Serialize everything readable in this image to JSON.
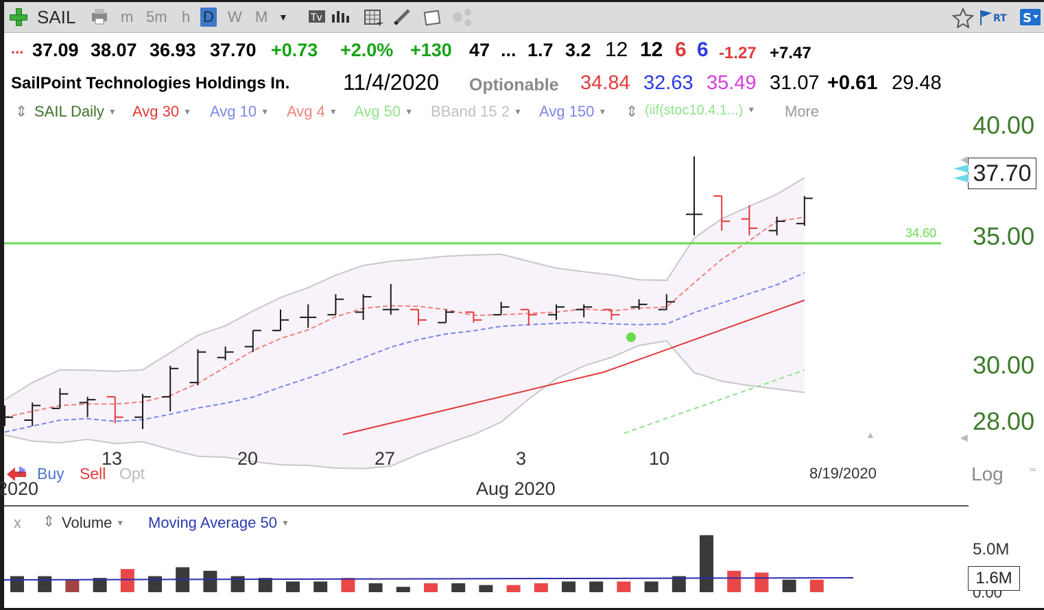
{
  "toolbar": {
    "symbol": "SAIL",
    "timeframes": [
      "m",
      "5m",
      "h",
      "D",
      "W",
      "M"
    ],
    "active_timeframe": "D",
    "rt_label": "RT",
    "s_label": "S"
  },
  "quote_line1": {
    "dots": "...",
    "open": "37.09",
    "high": "38.07",
    "low": "36.93",
    "close": "37.70",
    "change": "+0.73",
    "change_pct": "+2.0%",
    "vol_change": "+130",
    "v1": "47",
    "ellipsis": "...",
    "v2": "1.7",
    "v3": "3.2",
    "v4": "12",
    "v5": "12",
    "v6": "6",
    "v7": "6",
    "v8": "-1.27",
    "v9": "+7.47"
  },
  "quote_line2": {
    "company": "SailPoint Technologies Holdings In.",
    "date": "11/4/2020",
    "optionable": "Optionable",
    "n1": "34.84",
    "n2": "32.63",
    "n3": "35.49",
    "n4": "31.07",
    "n5": "+0.61",
    "n6": "29.48"
  },
  "indicators": [
    "SAIL Daily",
    "Avg 30",
    "Avg 10",
    "Avg 4",
    "Avg 50",
    "BBand 15 2",
    "Avg 150",
    "(iif(stoc10.4.1...)",
    "More"
  ],
  "colors": {
    "avg30": "#e03a3a",
    "avg10": "#7b86e6",
    "avg4": "#f0817d",
    "avg50": "#8fe38a",
    "bband": "#c8c8c8",
    "avg150": "#7b86e6",
    "stoc": "#8fe38a",
    "up_bar": "#1a1a1a",
    "down_bar": "#e03a3a",
    "hline": "#67dd4f",
    "axis_green": "#3c7a2a"
  },
  "price_axis": {
    "labels": [
      "40.00",
      "35.00",
      "30.00",
      "28.00"
    ],
    "current": "37.70",
    "scale": "Log"
  },
  "hline_label": "34.60",
  "date_axis": {
    "labels": [
      "13",
      "20",
      "27",
      "3",
      "10"
    ],
    "month": "Aug 2020",
    "year": "2020",
    "last_date": "8/19/2020"
  },
  "trade": {
    "buy": "Buy",
    "sell": "Sell",
    "opt": "Opt"
  },
  "volume_panel": {
    "close": "x",
    "title": "Volume",
    "ma": "Moving Average 50",
    "axis": [
      "5.0M",
      "1.6M",
      "0.00"
    ]
  },
  "chart_data": {
    "type": "ohlc",
    "title": "SAIL Daily",
    "ylim": [
      26.5,
      41
    ],
    "log_scale": true,
    "horizontal_line": 34.6,
    "bars": [
      {
        "x": "Jul 10",
        "o": 28.3,
        "h": 28.5,
        "l": 27.8,
        "c": 28.1,
        "up": true
      },
      {
        "x": "Jul 13",
        "o": 28.0,
        "h": 28.6,
        "l": 27.8,
        "c": 28.5,
        "up": true
      },
      {
        "x": "Jul 14",
        "o": 28.4,
        "h": 29.1,
        "l": 28.4,
        "c": 28.9,
        "up": true
      },
      {
        "x": "Jul 15",
        "o": 28.6,
        "h": 28.8,
        "l": 28.1,
        "c": 28.7,
        "up": true
      },
      {
        "x": "Jul 16",
        "o": 28.8,
        "h": 28.8,
        "l": 27.9,
        "c": 28.1,
        "up": false
      },
      {
        "x": "Jul 17",
        "o": 28.1,
        "h": 28.9,
        "l": 27.7,
        "c": 28.8,
        "up": true
      },
      {
        "x": "Jul 20",
        "o": 28.8,
        "h": 29.9,
        "l": 28.3,
        "c": 29.8,
        "up": true
      },
      {
        "x": "Jul 21",
        "o": 29.3,
        "h": 30.5,
        "l": 29.2,
        "c": 30.4,
        "up": true
      },
      {
        "x": "Jul 22",
        "o": 30.2,
        "h": 30.6,
        "l": 30.1,
        "c": 30.4,
        "up": true
      },
      {
        "x": "Jul 23",
        "o": 30.6,
        "h": 31.2,
        "l": 30.4,
        "c": 31.2,
        "up": true
      },
      {
        "x": "Jul 24",
        "o": 31.2,
        "h": 32.0,
        "l": 31.2,
        "c": 31.6,
        "up": true
      },
      {
        "x": "Jul 27",
        "o": 31.7,
        "h": 32.2,
        "l": 31.3,
        "c": 31.7,
        "up": true
      },
      {
        "x": "Jul 28",
        "o": 31.8,
        "h": 32.6,
        "l": 31.8,
        "c": 32.4,
        "up": true
      },
      {
        "x": "Jul 29",
        "o": 31.9,
        "h": 32.6,
        "l": 31.6,
        "c": 32.5,
        "up": true
      },
      {
        "x": "Jul 30",
        "o": 32.0,
        "h": 33.0,
        "l": 31.8,
        "c": 32.0,
        "up": true
      },
      {
        "x": "Jul 31",
        "o": 32.0,
        "h": 32.0,
        "l": 31.4,
        "c": 31.6,
        "up": false
      },
      {
        "x": "Aug 3",
        "o": 31.5,
        "h": 32.0,
        "l": 31.5,
        "c": 31.9,
        "up": true
      },
      {
        "x": "Aug 4",
        "o": 31.9,
        "h": 31.9,
        "l": 31.5,
        "c": 31.6,
        "up": false
      },
      {
        "x": "Aug 5",
        "o": 31.8,
        "h": 32.3,
        "l": 31.8,
        "c": 32.1,
        "up": true
      },
      {
        "x": "Aug 6",
        "o": 32.0,
        "h": 32.0,
        "l": 31.4,
        "c": 31.8,
        "up": false
      },
      {
        "x": "Aug 7",
        "o": 31.8,
        "h": 32.2,
        "l": 31.6,
        "c": 32.1,
        "up": true
      },
      {
        "x": "Aug 10",
        "o": 32.0,
        "h": 32.2,
        "l": 31.7,
        "c": 32.1,
        "up": true
      },
      {
        "x": "Aug 11",
        "o": 32.0,
        "h": 32.0,
        "l": 31.6,
        "c": 31.8,
        "up": false
      },
      {
        "x": "Aug 12",
        "o": 32.1,
        "h": 32.4,
        "l": 32.0,
        "c": 32.2,
        "up": true
      },
      {
        "x": "Aug 13",
        "o": 32.0,
        "h": 32.6,
        "l": 32.0,
        "c": 32.3,
        "up": true
      },
      {
        "x": "Aug 13b",
        "o": 35.9,
        "h": 38.5,
        "l": 35.0,
        "c": 35.9,
        "up": true
      },
      {
        "x": "Aug 14",
        "o": 36.7,
        "h": 36.7,
        "l": 35.2,
        "c": 35.6,
        "up": false
      },
      {
        "x": "Aug 17",
        "o": 35.7,
        "h": 36.3,
        "l": 35.0,
        "c": 35.3,
        "up": false
      },
      {
        "x": "Aug 18",
        "o": 35.2,
        "h": 35.8,
        "l": 35.0,
        "c": 35.6,
        "up": true
      },
      {
        "x": "Aug 19",
        "o": 35.5,
        "h": 36.7,
        "l": 35.4,
        "c": 36.6,
        "up": true
      }
    ]
  }
}
